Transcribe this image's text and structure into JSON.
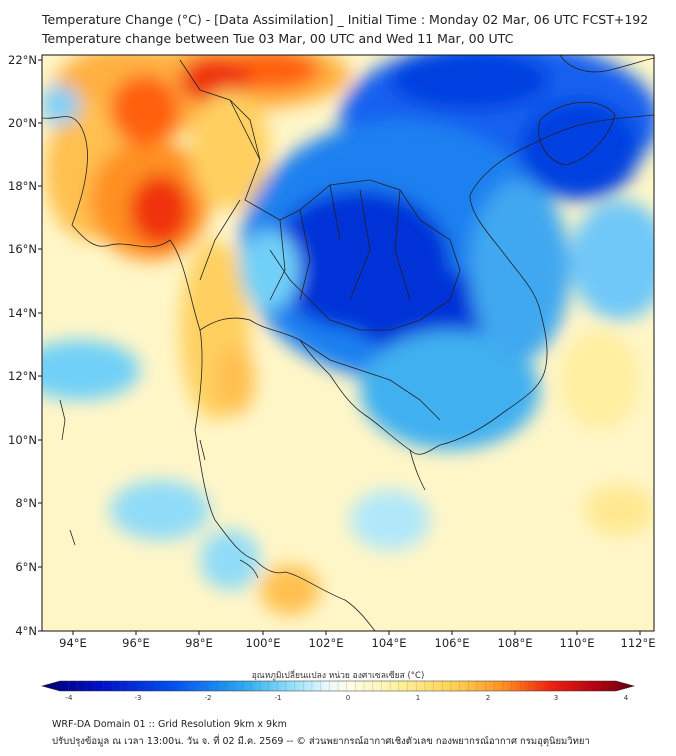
{
  "title_line1": "Temperature Change (°C) - [Data Assimilation] _ Initial Time : Monday 02 Mar, 06 UTC FCST+192",
  "title_line2": "Temperature change between Tue 03 Mar, 00 UTC and Wed 11 Mar, 00 UTC",
  "lat_labels": [
    "22°N",
    "20°N",
    "18°N",
    "16°N",
    "14°N",
    "12°N",
    "10°N",
    "8°N",
    "6°N",
    "4°N"
  ],
  "lon_labels": [
    "94°E",
    "96°E",
    "98°E",
    "100°E",
    "102°E",
    "104°E",
    "106°E",
    "108°E",
    "110°E",
    "112°E"
  ],
  "colorbar": {
    "caption": "อุณหภูมิเปลี่ยนแปลง หน่วย องศาเซลเซียส (°C)",
    "ticks": [
      "-4",
      "-3",
      "-2",
      "-1",
      "0",
      "1",
      "2",
      "3",
      "4"
    ],
    "min": -4,
    "max": 4,
    "colors": [
      "#000070",
      "#0010c8",
      "#0050f0",
      "#2aa8f0",
      "#8fe0f8",
      "#e8f8ff",
      "#ffffff",
      "#fffad0",
      "#ffe890",
      "#ffc040",
      "#ff8020",
      "#f02010",
      "#b00010",
      "#600010"
    ]
  },
  "footer_line1": "WRF-DA Domain 01 :: Grid Resolution 9km x 9km",
  "footer_line2": "ปรับปรุงข้อมูล ณ เวลา 13:00น. วัน จ. ที่ 02 มี.ค. 2569 -- © ส่วนพยากรณ์อากาศเชิงตัวเลข กองพยากรณ์อากาศ กรมอุตุนิยมวิทยา"
}
